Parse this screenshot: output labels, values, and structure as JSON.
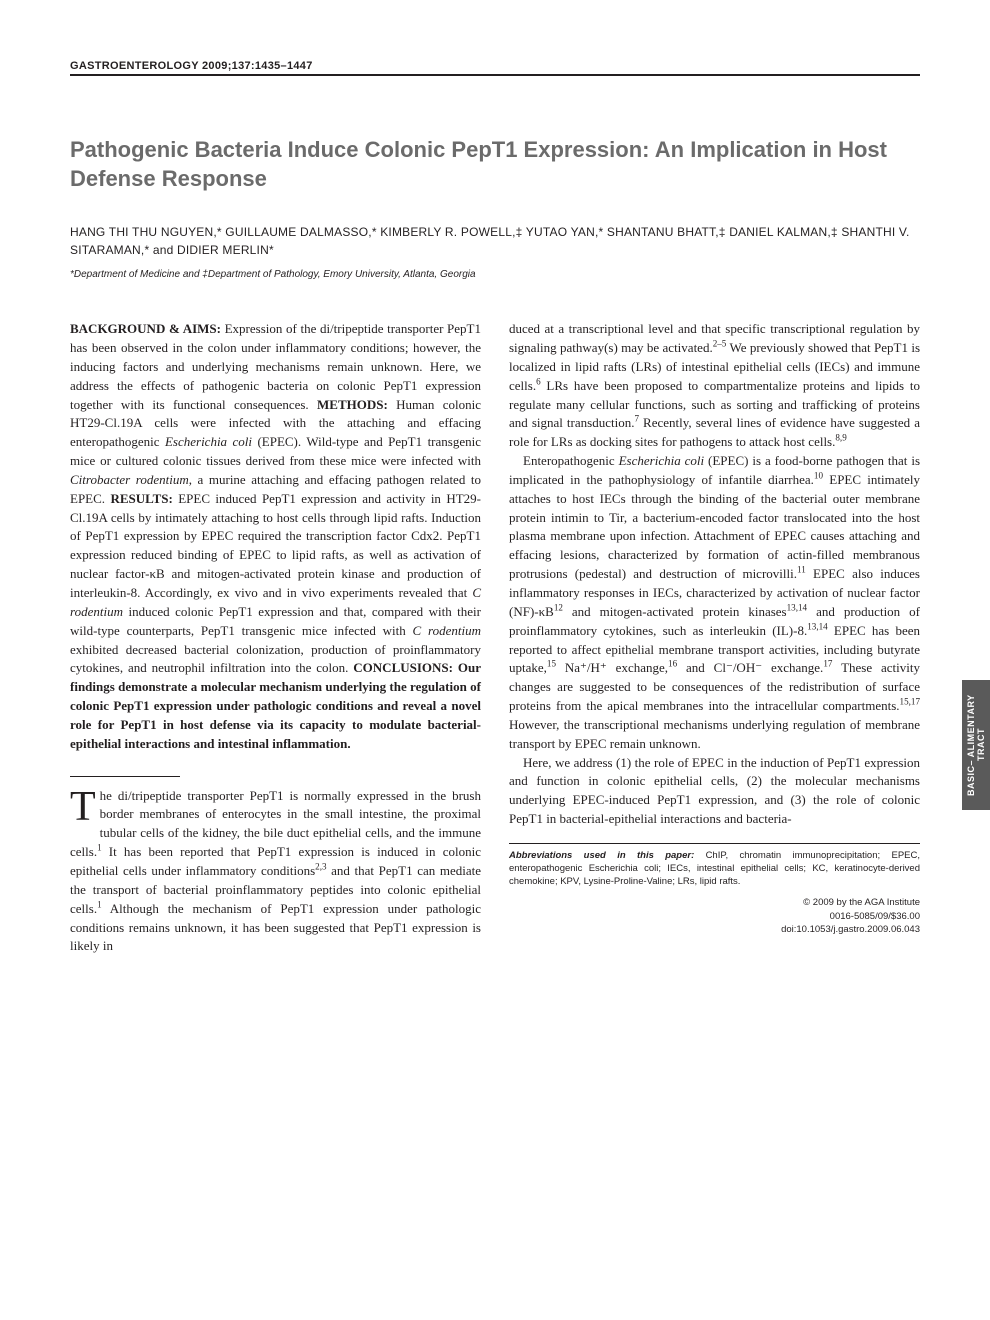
{
  "journal_header": "GASTROENTEROLOGY 2009;137:1435–1447",
  "title": "Pathogenic Bacteria Induce Colonic PepT1 Expression: An Implication in Host Defense Response",
  "authors": "HANG THI THU NGUYEN,* GUILLAUME DALMASSO,* KIMBERLY R. POWELL,‡ YUTAO YAN,* SHANTANU BHATT,‡ DANIEL KALMAN,‡ SHANTHI V. SITARAMAN,* and DIDIER MERLIN*",
  "affiliations": "*Department of Medicine and ‡Department of Pathology, Emory University, Atlanta, Georgia",
  "abstract": {
    "background_label": "BACKGROUND & AIMS:",
    "background_text": " Expression of the di/tripeptide transporter PepT1 has been observed in the colon under inflammatory conditions; however, the inducing factors and underlying mechanisms remain unknown. Here, we address the effects of pathogenic bacteria on colonic PepT1 expression together with its functional consequences. ",
    "methods_label": "METHODS:",
    "methods_text": " Human colonic HT29-Cl.19A cells were infected with the attaching and effacing enteropathogenic ",
    "methods_italic": "Escherichia coli",
    "methods_text2": " (EPEC). Wild-type and PepT1 transgenic mice or cultured colonic tissues derived from these mice were infected with ",
    "methods_italic2": "Citrobacter rodentium",
    "methods_text3": ", a murine attaching and effacing pathogen related to EPEC. ",
    "results_label": "RESULTS:",
    "results_text": " EPEC induced PepT1 expression and activity in HT29-Cl.19A cells by intimately attaching to host cells through lipid rafts. Induction of PepT1 expression by EPEC required the transcription factor Cdx2. PepT1 expression reduced binding of EPEC to lipid rafts, as well as activation of nuclear factor-κB and mitogen-activated protein kinase and production of interleukin-8. Accordingly, ex vivo and in vivo experiments revealed that ",
    "results_italic": "C rodentium",
    "results_text2": " induced colonic PepT1 expression and that, compared with their wild-type counterparts, PepT1 transgenic mice infected with ",
    "results_italic2": "C rodentium",
    "results_text3": " exhibited decreased bacterial colonization, production of proinflammatory cytokines, and neutrophil infiltration into the colon. ",
    "conclusions_label": "CONCLUSIONS:",
    "conclusions_text": " Our findings demonstrate a molecular mechanism underlying the regulation of colonic PepT1 expression under pathologic conditions and reveal a novel role for PepT1 in host defense via its capacity to modulate bacterial-epithelial interactions and intestinal inflammation."
  },
  "intro": {
    "p1a": "he di/tripeptide transporter PepT1 is normally expressed in the brush border membranes of enterocytes in the small intestine, the proximal tubular cells of the kidney, the bile duct epithelial cells, and the immune cells.",
    "p1_sup1": "1",
    "p1b": " It has been reported that PepT1 expression is induced in colonic epithelial cells under inflammatory conditions",
    "p1_sup2": "2,3",
    "p1c": " and that PepT1 can mediate the transport of bacterial proinflammatory peptides into colonic epithelial cells.",
    "p1_sup3": "1",
    "p1d": " Although the mechanism of PepT1 expression under pathologic conditions remains unknown, it has been suggested that PepT1 expression is likely in",
    "p1e": "duced at a transcriptional level and that specific transcriptional regulation by signaling pathway(s) may be activated.",
    "p1_sup4": "2–5",
    "p1f": " We previously showed that PepT1 is localized in lipid rafts (LRs) of intestinal epithelial cells (IECs) and immune cells.",
    "p1_sup5": "6",
    "p1g": " LRs have been proposed to compartmentalize proteins and lipids to regulate many cellular functions, such as sorting and trafficking of proteins and signal transduction.",
    "p1_sup6": "7",
    "p1h": " Recently, several lines of evidence have suggested a role for LRs as docking sites for pathogens to attack host cells.",
    "p1_sup7": "8,9",
    "p2a": "Enteropathogenic ",
    "p2_italic": "Escherichia coli",
    "p2b": " (EPEC) is a food-borne pathogen that is implicated in the pathophysiology of infantile diarrhea.",
    "p2_sup1": "10",
    "p2c": " EPEC intimately attaches to host IECs through the binding of the bacterial outer membrane protein intimin to Tir, a bacterium-encoded factor translocated into the host plasma membrane upon infection. Attachment of EPEC causes attaching and effacing lesions, characterized by formation of actin-filled membranous protrusions (pedestal) and destruction of microvilli.",
    "p2_sup2": "11",
    "p2d": " EPEC also induces inflammatory responses in IECs, characterized by activation of nuclear factor (NF)-κB",
    "p2_sup3": "12",
    "p2e": " and mitogen-activated protein kinases",
    "p2_sup4": "13,14",
    "p2f": " and production of proinflammatory cytokines, such as interleukin (IL)-8.",
    "p2_sup5": "13,14",
    "p2g": " EPEC has been reported to affect epithelial membrane transport activities, including butyrate uptake,",
    "p2_sup6": "15",
    "p2h": " Na⁺/H⁺ exchange,",
    "p2_sup7": "16",
    "p2i": " and Cl⁻/OH⁻ exchange.",
    "p2_sup8": "17",
    "p2j": " These activity changes are suggested to be consequences of the redistribution of surface proteins from the apical membranes into the intracellular compartments.",
    "p2_sup9": "15,17",
    "p2k": " However, the transcriptional mechanisms underlying regulation of membrane transport by EPEC remain unknown.",
    "p3": "Here, we address (1) the role of EPEC in the induction of PepT1 expression and function in colonic epithelial cells, (2) the molecular mechanisms underlying EPEC-induced PepT1 expression, and (3) the role of colonic PepT1 in bacterial-epithelial interactions and bacteria-"
  },
  "footnote": {
    "abbrev_label": "Abbreviations used in this paper:",
    "abbrev_text": " ChIP, chromatin immunoprecipitation; EPEC, enteropathogenic Escherichia coli; IECs, intestinal epithelial cells; KC, keratinocyte-derived chemokine; KPV, Lysine-Proline-Valine; LRs, lipid rafts.",
    "copyright1": "© 2009 by the AGA Institute",
    "copyright2": "0016-5085/09/$36.00",
    "doi": "doi:10.1053/j.gastro.2009.06.043"
  },
  "side_tab": "BASIC–\nALIMENTARY TRACT",
  "colors": {
    "text": "#231f20",
    "title": "#6b6b6b",
    "tab_bg": "#5a5a5a",
    "tab_fg": "#ffffff",
    "background": "#ffffff"
  }
}
